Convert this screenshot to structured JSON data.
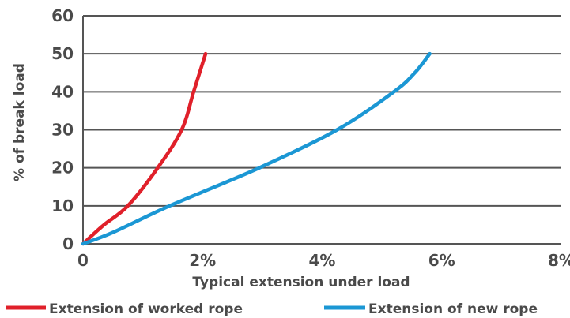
{
  "chart_data": {
    "type": "line",
    "xlabel": "Typical extension under load",
    "ylabel": "% of break load",
    "xlim": [
      0,
      8
    ],
    "ylim": [
      0,
      60
    ],
    "x_ticks": [
      {
        "value": 0,
        "label": "0"
      },
      {
        "value": 2,
        "label": "2%"
      },
      {
        "value": 4,
        "label": "4%"
      },
      {
        "value": 6,
        "label": "6%"
      },
      {
        "value": 8,
        "label": "8%"
      }
    ],
    "y_ticks": [
      {
        "value": 0,
        "label": "0"
      },
      {
        "value": 10,
        "label": "10"
      },
      {
        "value": 20,
        "label": "20"
      },
      {
        "value": 30,
        "label": "30"
      },
      {
        "value": 40,
        "label": "40"
      },
      {
        "value": 50,
        "label": "50"
      },
      {
        "value": 60,
        "label": "60"
      }
    ],
    "grid": "horizontal",
    "legend_position": "bottom",
    "series": [
      {
        "name": "Extension of worked rope",
        "color": "#e0202a",
        "x": [
          0,
          0.35,
          0.75,
          1.25,
          1.65,
          1.85,
          2.05
        ],
        "y": [
          0,
          5,
          10,
          20,
          30,
          40,
          50
        ]
      },
      {
        "name": "Extension of new rope",
        "color": "#1b97d4",
        "x": [
          0,
          0.5,
          1.45,
          2.95,
          4.25,
          5.2,
          5.55,
          5.8
        ],
        "y": [
          0,
          3,
          10,
          20,
          30,
          40,
          45,
          50
        ]
      }
    ]
  }
}
